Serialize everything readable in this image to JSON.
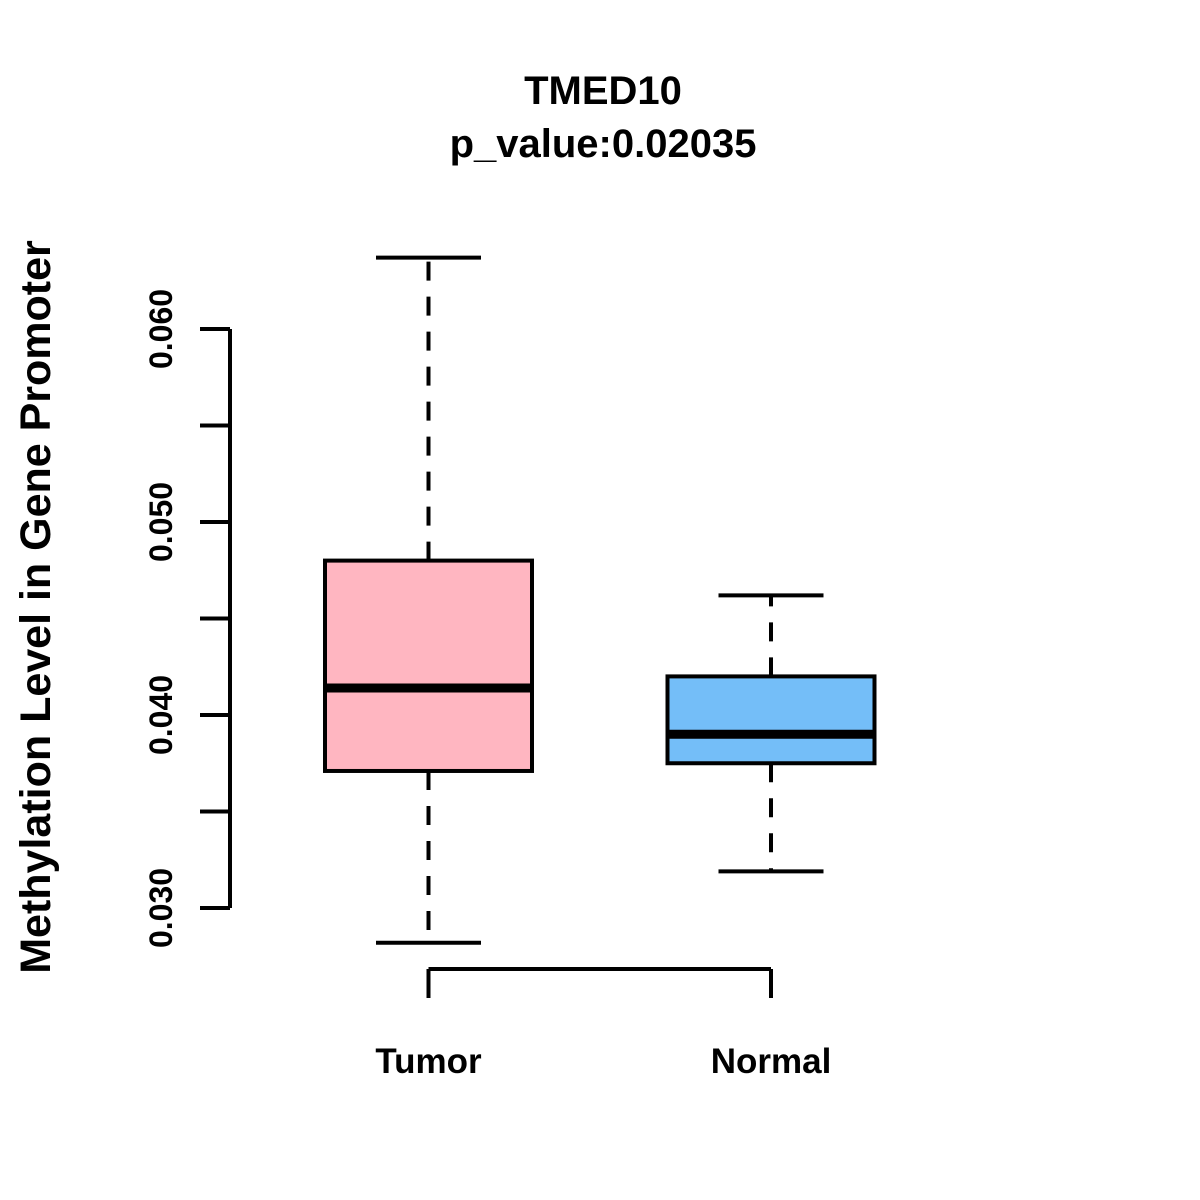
{
  "figure": {
    "title": "TMED10",
    "subtitle": "p_value:0.02035",
    "y_axis_label": "Methylation Level in Gene Promoter"
  },
  "chart_data": {
    "type": "boxplot",
    "title": "TMED10",
    "subtitle": "p_value:0.02035",
    "p_value": 0.02035,
    "gene": "TMED10",
    "ylabel": "Methylation Level in Gene Promoter",
    "xlabel": "",
    "categories": [
      "Tumor",
      "Normal"
    ],
    "series": [
      {
        "name": "Tumor",
        "color": "#FFB6C1",
        "whisker_low": 0.0282,
        "q1": 0.0371,
        "median": 0.0414,
        "q3": 0.048,
        "whisker_high": 0.0637
      },
      {
        "name": "Normal",
        "color": "#74BEF8",
        "whisker_low": 0.0319,
        "q1": 0.0375,
        "median": 0.039,
        "q3": 0.042,
        "whisker_high": 0.0462
      }
    ],
    "ylim": [
      0.03,
      0.06
    ],
    "y_ticks_labeled": [
      0.03,
      0.04,
      0.05,
      0.06
    ],
    "y_tick_minor_step": 0.005,
    "tick_label_format_decimals": 3,
    "grid": false,
    "legend_position": "none",
    "styles": {
      "background": "#FFFFFF",
      "box_border_color": "#000000",
      "median_color": "#000000",
      "whisker_line_style": "dashed",
      "text_color": "#000000"
    }
  }
}
